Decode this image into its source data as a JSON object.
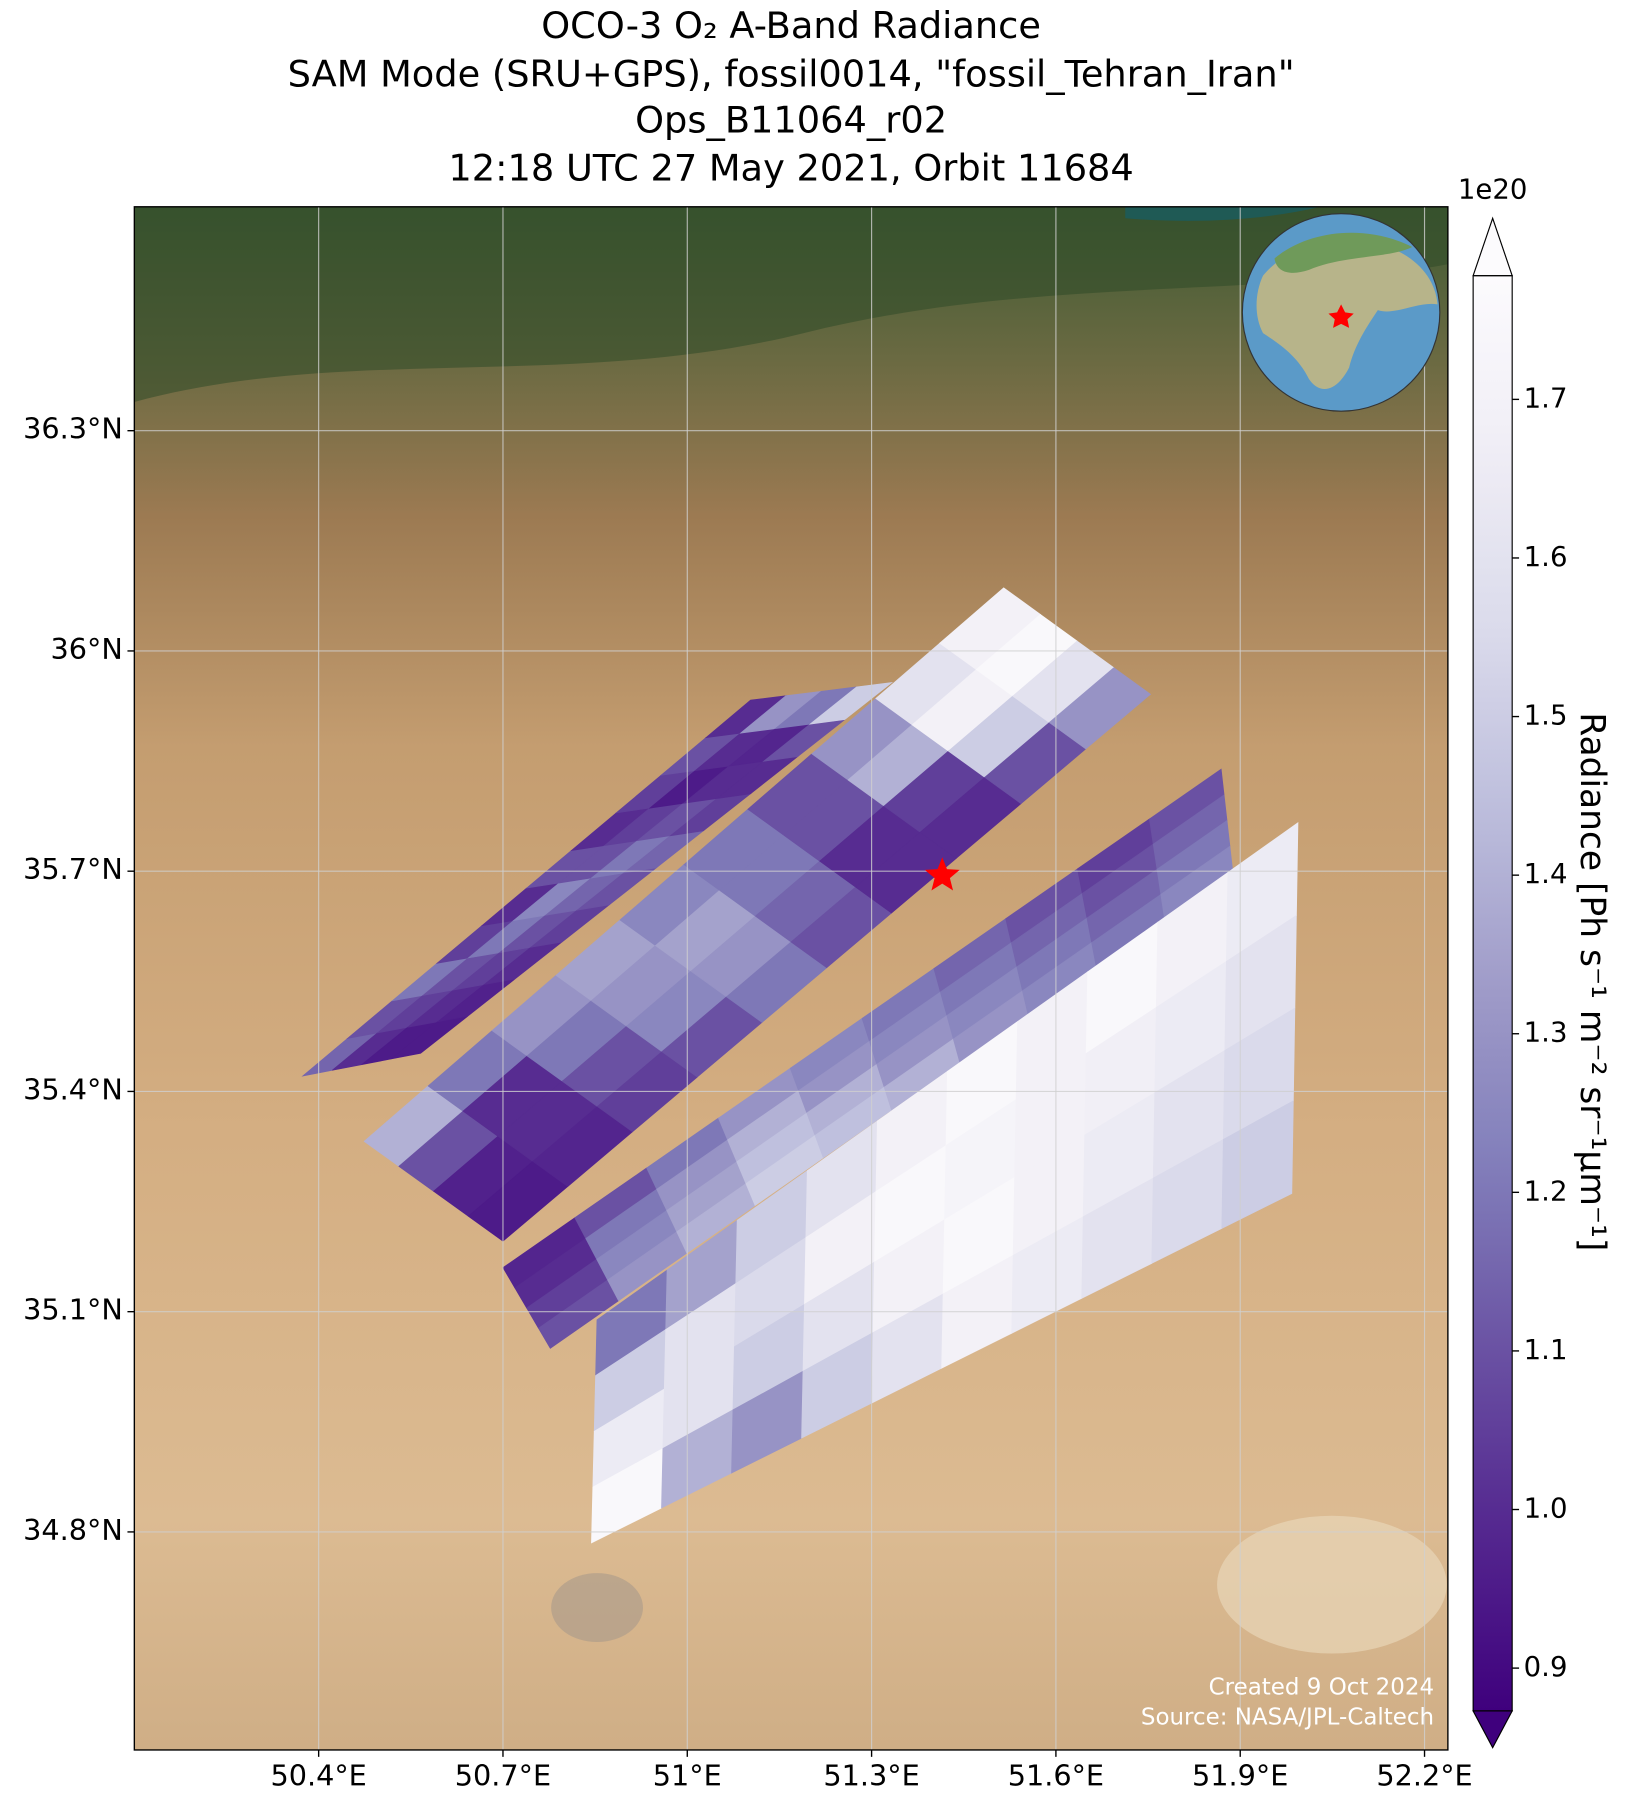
{
  "chart_data": {
    "type": "map",
    "title": [
      "OCO-3 O₂ A-Band Radiance",
      "SAM Mode (SRU+GPS), fossil0014, \"fossil_Tehran_Iran\"",
      "Ops_B11064_r02",
      "12:18 UTC 27 May 2021, Orbit 11684"
    ],
    "xlim": [
      50.1,
      52.238
    ],
    "ylim": [
      34.503,
      36.605
    ],
    "xticks": [
      {
        "value": 50.4,
        "label": "50.4°E"
      },
      {
        "value": 50.7,
        "label": "50.7°E"
      },
      {
        "value": 51,
        "label": "51°E"
      },
      {
        "value": 51.3,
        "label": "51.3°E"
      },
      {
        "value": 51.6,
        "label": "51.6°E"
      },
      {
        "value": 51.9,
        "label": "51.9°E"
      },
      {
        "value": 52.2,
        "label": "52.2°E"
      }
    ],
    "yticks": [
      {
        "value": 34.8,
        "label": "34.8°N"
      },
      {
        "value": 35.1,
        "label": "35.1°N"
      },
      {
        "value": 35.4,
        "label": "35.4°N"
      },
      {
        "value": 35.7,
        "label": "35.7°N"
      },
      {
        "value": 36,
        "label": "36°N"
      },
      {
        "value": 36.3,
        "label": "36.3°N"
      }
    ],
    "grid": true,
    "colorbar": {
      "label": "Radiance [Ph s⁻¹ m⁻² sr⁻¹μm⁻¹]",
      "offset_label": "1e20",
      "lim": [
        0.873,
        1.778
      ],
      "ticks": [
        0.9,
        {
          "value": 1,
          "label": "1.0"
        },
        1.1,
        1.2,
        1.3,
        1.4,
        1.5,
        1.6,
        1.7
      ]
    },
    "colormap": [
      "#3f007d",
      "#54278f",
      "#6a51a3",
      "#807dba",
      "#9e9ac8",
      "#bcbddc",
      "#dadaeb",
      "#efedf5",
      "#fcfbfd"
    ],
    "swaths": [
      {
        "corners": [
          [
            50.374,
            35.421
          ],
          [
            50.566,
            35.452
          ],
          [
            51.333,
            35.957
          ],
          [
            51.103,
            35.933
          ]
        ],
        "values": [
          [
            1.15,
            1.1,
            1.2,
            1.05,
            1.0,
            1.1,
            1.0,
            1.05,
            1.1,
            1.0
          ],
          [
            1.0,
            1.05,
            1.1,
            1.2,
            1.25,
            1.1,
            1.05,
            0.95,
            1.0,
            1.3
          ],
          [
            0.95,
            1.0,
            1.05,
            1.1,
            1.15,
            1.2,
            1.1,
            1.0,
            0.98,
            1.2
          ],
          [
            0.95,
            0.97,
            1.0,
            1.05,
            1.1,
            1.15,
            1.05,
            1.0,
            1.1,
            1.5
          ]
        ]
      },
      {
        "corners": [
          [
            50.474,
            35.332
          ],
          [
            50.7,
            35.196
          ],
          [
            51.754,
            35.941
          ],
          [
            51.515,
            36.086
          ]
        ],
        "values": [
          [
            1.4,
            1.2,
            1.3,
            1.35,
            1.25,
            1.2,
            1.1,
            1.3,
            1.6,
            1.7
          ],
          [
            1.1,
            1.0,
            1.2,
            1.3,
            1.35,
            1.2,
            1.1,
            1.4,
            1.7,
            1.75
          ],
          [
            0.97,
            1.0,
            1.1,
            1.25,
            1.3,
            1.15,
            1.0,
            1.05,
            1.5,
            1.6
          ],
          [
            0.95,
            0.98,
            1.05,
            1.1,
            1.2,
            1.1,
            1.0,
            1.0,
            1.1,
            1.3
          ]
        ]
      },
      {
        "corners": [
          [
            50.7,
            35.16
          ],
          [
            50.777,
            35.05
          ],
          [
            51.888,
            35.699
          ],
          [
            51.869,
            35.839
          ]
        ],
        "values": [
          [
            0.98,
            1.1,
            1.2,
            1.3,
            1.25,
            1.2,
            1.15,
            1.1,
            1.05,
            1.1
          ],
          [
            1.0,
            1.2,
            1.3,
            1.4,
            1.3,
            1.25,
            1.2,
            1.15,
            1.1,
            1.15
          ],
          [
            1.05,
            1.25,
            1.35,
            1.45,
            1.4,
            1.3,
            1.25,
            1.2,
            1.15,
            1.2
          ],
          [
            1.1,
            1.3,
            1.4,
            1.5,
            1.45,
            1.4,
            1.3,
            1.25,
            1.2,
            1.25
          ]
        ]
      },
      {
        "corners": [
          [
            50.853,
            35.089
          ],
          [
            50.844,
            34.785
          ],
          [
            51.984,
            35.261
          ],
          [
            51.994,
            35.766
          ]
        ],
        "values": [
          [
            1.2,
            1.35,
            1.5,
            1.6,
            1.7,
            1.75,
            1.7,
            1.75,
            1.7,
            1.65
          ],
          [
            1.5,
            1.6,
            1.55,
            1.7,
            1.75,
            1.72,
            1.7,
            1.68,
            1.65,
            1.6
          ],
          [
            1.65,
            1.6,
            1.5,
            1.6,
            1.7,
            1.75,
            1.7,
            1.65,
            1.6,
            1.55
          ],
          [
            1.75,
            1.4,
            1.3,
            1.5,
            1.6,
            1.7,
            1.65,
            1.6,
            1.55,
            1.5
          ]
        ]
      }
    ],
    "target": [
      51.415,
      35.694
    ],
    "footer": [
      "Created 9 Oct 2024",
      "Source: NASA/JPL-Caltech"
    ]
  }
}
